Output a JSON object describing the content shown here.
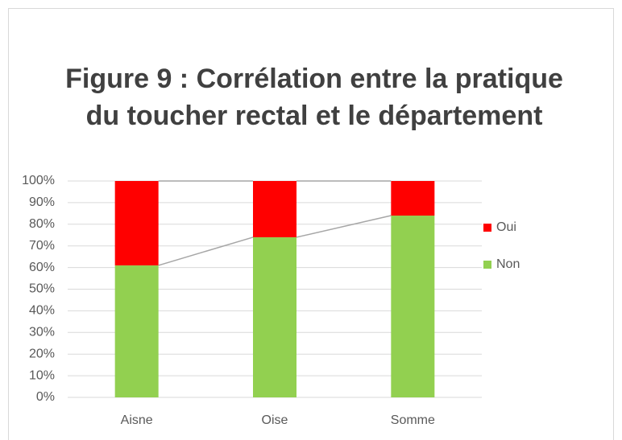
{
  "chart_data": {
    "type": "stacked_bar",
    "title": [
      "Figure 9 : Corrélation entre la pratique",
      "du toucher rectal et le département"
    ],
    "categories": [
      "Aisne",
      "Oise",
      "Somme"
    ],
    "series": [
      {
        "name": "Non",
        "color": "#92d050",
        "values": [
          61,
          74,
          84
        ]
      },
      {
        "name": "Oui",
        "color": "#ff0000",
        "values": [
          39,
          26,
          16
        ]
      }
    ],
    "ylim": [
      0,
      100
    ],
    "yticks": [
      {
        "value": 0,
        "label": "0%"
      },
      {
        "value": 10,
        "label": "10%"
      },
      {
        "value": 20,
        "label": "20%"
      },
      {
        "value": 30,
        "label": "30%"
      },
      {
        "value": 40,
        "label": "40%"
      },
      {
        "value": 50,
        "label": "50%"
      },
      {
        "value": 60,
        "label": "60%"
      },
      {
        "value": 70,
        "label": "70%"
      },
      {
        "value": 80,
        "label": "80%"
      },
      {
        "value": 90,
        "label": "90%"
      },
      {
        "value": 100,
        "label": "100%"
      }
    ],
    "grid": true,
    "legend": "right"
  }
}
